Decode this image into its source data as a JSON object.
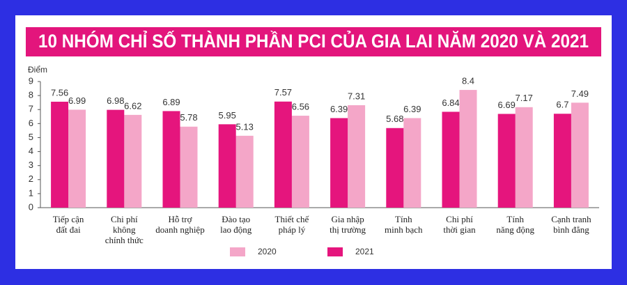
{
  "chart_data": {
    "type": "bar",
    "title": "10 NHÓM CHỈ SỐ THÀNH PHẦN PCI CỦA GIA LAI NĂM 2020 VÀ 2021",
    "y_label": "Điểm",
    "categories": [
      [
        "Tiếp cận",
        "đất đai"
      ],
      [
        "Chi phí",
        "không",
        "chính thức"
      ],
      [
        "Hỗ trợ",
        "doanh nghiệp"
      ],
      [
        "Đào tạo",
        "lao động"
      ],
      [
        "Thiết chế",
        "pháp lý"
      ],
      [
        "Gia nhập",
        "thị trường"
      ],
      [
        "Tính",
        "minh bạch"
      ],
      [
        "Chi phí",
        "thời gian"
      ],
      [
        "Tính",
        "năng động"
      ],
      [
        "Cạnh tranh",
        "bình đẳng"
      ]
    ],
    "series": [
      {
        "name": "2020",
        "color": "#f4a6c8",
        "values": [
          6.99,
          6.62,
          5.78,
          5.13,
          6.56,
          7.31,
          6.39,
          8.4,
          7.17,
          7.49
        ]
      },
      {
        "name": "2021",
        "color": "#e5157d",
        "values": [
          7.56,
          6.98,
          6.89,
          5.95,
          7.57,
          6.39,
          5.68,
          6.84,
          6.69,
          6.7
        ]
      }
    ],
    "ylim": [
      0,
      9
    ],
    "yticks": [
      0,
      1,
      2,
      3,
      4,
      5,
      6,
      7,
      8,
      9
    ],
    "grid": false
  }
}
